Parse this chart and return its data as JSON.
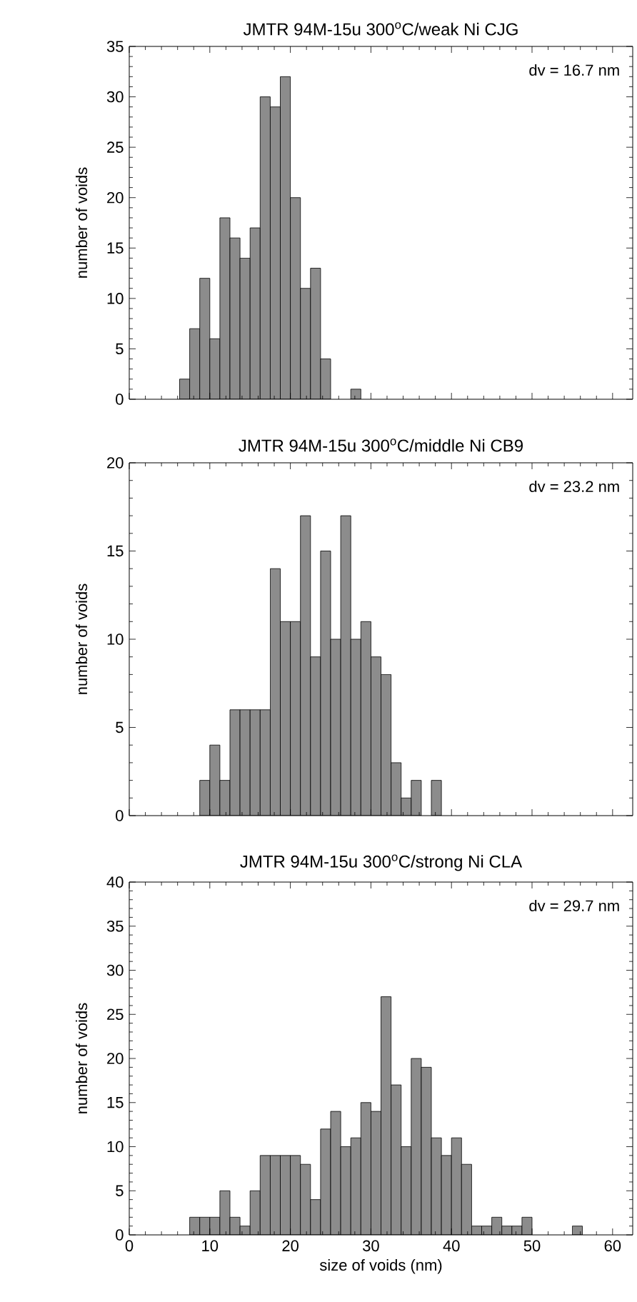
{
  "chart_data": [
    {
      "type": "histogram",
      "title": "JMTR 94M-15u 300$^{o}$C/weak Ni CJG",
      "ylabel": "number of voids",
      "color": "#8c8c8c",
      "bins": [
        6.25,
        7.5,
        8.75,
        10,
        11.25,
        12.5,
        13.75,
        15,
        16.25,
        17.5,
        18.75,
        20,
        21.25,
        22.5,
        23.75,
        25,
        26.25,
        27.5,
        28.75
      ],
      "values": [
        2,
        7,
        12,
        6,
        18,
        16,
        14,
        17,
        30,
        29,
        32,
        20,
        11,
        13,
        4,
        0,
        0,
        1
      ],
      "xlim": [
        0,
        62.5
      ],
      "xticks": [
        0,
        10,
        20,
        30,
        40,
        50,
        60
      ],
      "ylim": [
        0,
        35
      ],
      "yticks": [
        0,
        5,
        10,
        15,
        20,
        25,
        30,
        35
      ],
      "tick_labels": "y",
      "annotations": [
        "dv = 16.7 nm"
      ]
    },
    {
      "type": "histogram",
      "title": "JMTR 94M-15u 300$^{o}$C/middle Ni CB9",
      "ylabel": "number of voids",
      "color": "#8c8c8c",
      "bins": [
        8.75,
        10,
        11.25,
        12.5,
        13.75,
        15,
        16.25,
        17.5,
        18.75,
        20,
        21.25,
        22.5,
        23.75,
        25,
        26.25,
        27.5,
        28.75,
        30,
        31.25,
        32.5,
        33.75,
        35,
        36.25,
        37.5,
        38.75
      ],
      "values": [
        2,
        4,
        2,
        6,
        6,
        6,
        6,
        14,
        11,
        11,
        17,
        9,
        15,
        10,
        17,
        10,
        11,
        9,
        8,
        3,
        1,
        2,
        0,
        2
      ],
      "xlim": [
        0,
        62.5
      ],
      "xticks": [
        0,
        10,
        20,
        30,
        40,
        50,
        60
      ],
      "ylim": [
        0,
        20
      ],
      "yticks": [
        0,
        5,
        10,
        15,
        20
      ],
      "tick_labels": "y",
      "annotations": [
        "dv = 23.2 nm"
      ]
    },
    {
      "type": "histogram",
      "title": "JMTR 94M-15u 300$^{o}$C/strong Ni CLA",
      "xlabel": "size of voids (nm)",
      "ylabel": "number of voids",
      "color": "#8c8c8c",
      "bins": [
        7.5,
        8.75,
        10,
        11.25,
        12.5,
        13.75,
        15,
        16.25,
        17.5,
        18.75,
        20,
        21.25,
        22.5,
        23.75,
        25,
        26.25,
        27.5,
        28.75,
        30,
        31.25,
        32.5,
        33.75,
        35,
        36.25,
        37.5,
        38.75,
        40,
        41.25,
        42.5,
        43.75,
        45,
        46.25,
        47.5,
        48.75,
        50,
        51.25,
        52.5,
        53.75,
        55,
        56.25
      ],
      "values": [
        2,
        2,
        2,
        5,
        2,
        1,
        5,
        9,
        9,
        9,
        9,
        8,
        4,
        12,
        14,
        10,
        11,
        15,
        14,
        27,
        17,
        10,
        20,
        19,
        11,
        9,
        11,
        8,
        1,
        1,
        2,
        1,
        1,
        2,
        0,
        0,
        0,
        0,
        1
      ],
      "xlim": [
        0,
        62.5
      ],
      "xticks": [
        0,
        10,
        20,
        30,
        40,
        50,
        60
      ],
      "ylim": [
        0,
        40
      ],
      "yticks": [
        0,
        5,
        10,
        15,
        20,
        25,
        30,
        35,
        40
      ],
      "annotations": [
        "dv = 29.7 nm"
      ]
    }
  ]
}
